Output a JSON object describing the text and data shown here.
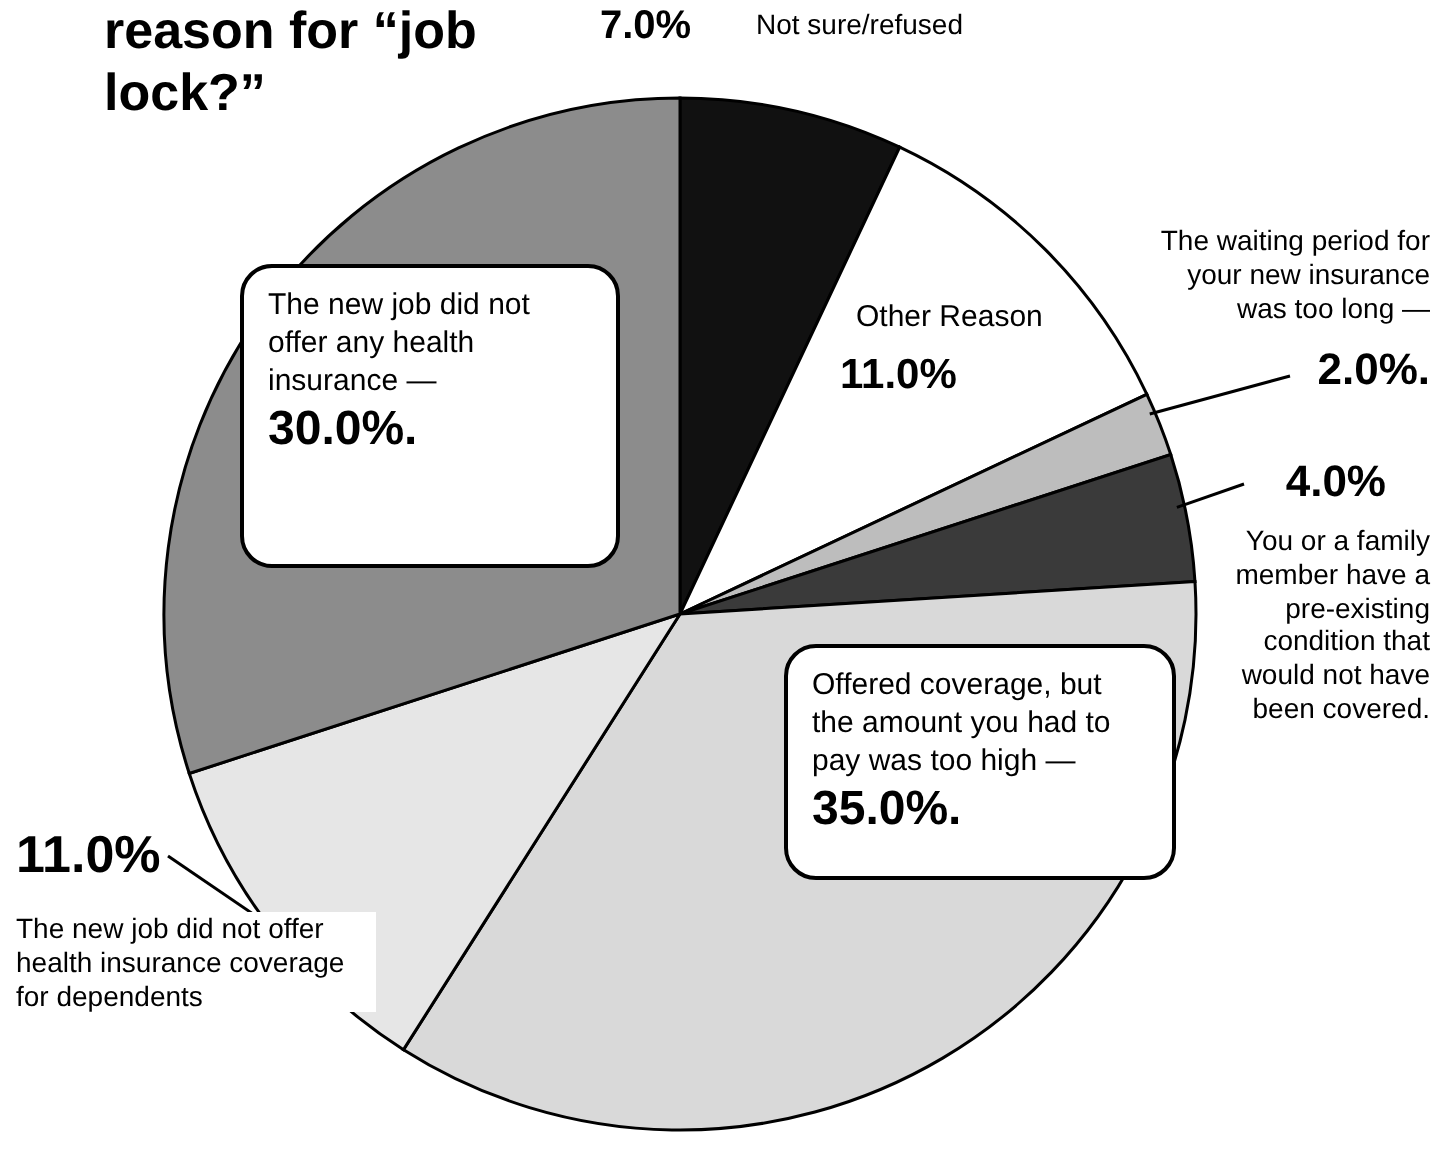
{
  "chart_data": {
    "type": "pie",
    "title": "reason for “job lock?”",
    "categories": [
      "Not sure/refused",
      "Other Reason",
      "The waiting period for your new insurance was too long —",
      "You or a family member have a pre-existing condition that would not have been covered.",
      "Offered coverage, but the amount you had to pay was too high —",
      "The new job did not offer health insurance coverage for dependents",
      "The new job did not offer any health insurance —"
    ],
    "values": [
      7,
      11,
      2,
      4,
      35,
      11,
      30
    ],
    "value_labels": [
      "7.0%",
      "11.0%",
      "2.0%.",
      "4.0%",
      "35.0%.",
      "11.0%",
      "30.0%."
    ],
    "colors": [
      "#111111",
      "#ffffff",
      "#bdbdbd",
      "#3a3a3a",
      "#d9d9d9",
      "#e6e6e6",
      "#8c8c8c"
    ],
    "legend": false
  }
}
